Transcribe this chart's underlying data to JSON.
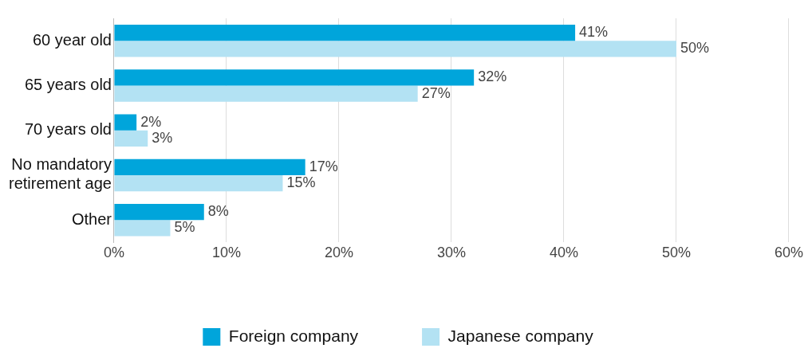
{
  "chart_data": {
    "type": "bar",
    "orientation": "horizontal",
    "categories": [
      "60 year old",
      "65 years old",
      "70 years old",
      "No mandatory retirement age",
      "Other"
    ],
    "series": [
      {
        "name": "Foreign company",
        "color": "#00a5db",
        "values": [
          41,
          32,
          2,
          17,
          8
        ],
        "value_labels": [
          "41%",
          "32%",
          "2%",
          "17%",
          "8%"
        ]
      },
      {
        "name": "Japanese company",
        "color": "#b3e2f3",
        "values": [
          50,
          27,
          3,
          15,
          5
        ],
        "value_labels": [
          "50%",
          "27%",
          "3%",
          "15%",
          "5%"
        ]
      }
    ],
    "xlim": [
      0,
      60
    ],
    "xticks": [
      {
        "value": 0,
        "label": "0%"
      },
      {
        "value": 10,
        "label": "10%"
      },
      {
        "value": 20,
        "label": "20%"
      },
      {
        "value": 30,
        "label": "30%"
      },
      {
        "value": 40,
        "label": "40%"
      },
      {
        "value": 50,
        "label": "50%"
      },
      {
        "value": 60,
        "label": "60%"
      }
    ],
    "grid": "x",
    "legend": "bottom"
  }
}
